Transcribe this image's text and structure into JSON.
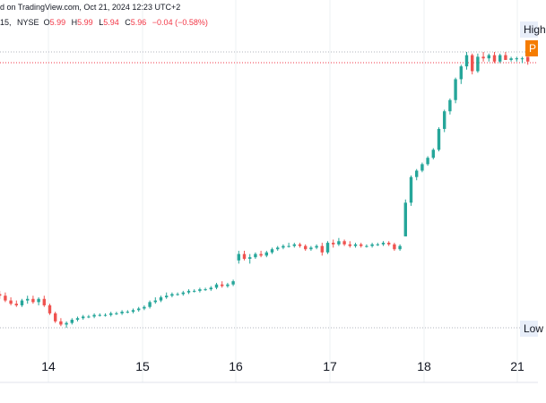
{
  "header": {
    "source_text": "d on TradingView.com, Oct 21, 2024 12:23 UTC+2",
    "interval": "15",
    "exchange": "NYSE",
    "open_label": "O",
    "open_value": "5.99",
    "high_label": "H",
    "high_value": "5.99",
    "low_label": "L",
    "low_value": "5.94",
    "close_label": "C",
    "close_value": "5.96",
    "change": "−0.04 (−0.58%)"
  },
  "badges": {
    "high": "High",
    "price": "P",
    "low": "Low"
  },
  "colors": {
    "up": "#26a69a",
    "down": "#ef5350",
    "grid": "#eef0f3",
    "price_line": "#f23645",
    "ref_line": "#b2b5be"
  },
  "chart_data": {
    "type": "candlestick",
    "x_tick_labels": [
      "14",
      "15",
      "16",
      "17",
      "18",
      "21"
    ],
    "high_line": 6.02,
    "low_line": 4.3,
    "last_price": 5.96,
    "ylim": [
      4.1,
      6.2
    ],
    "candles": [
      [
        0,
        4.51,
        4.53,
        4.48,
        4.5
      ],
      [
        1,
        4.5,
        4.52,
        4.46,
        4.47
      ],
      [
        2,
        4.47,
        4.49,
        4.44,
        4.45
      ],
      [
        3,
        4.45,
        4.47,
        4.43,
        4.44
      ],
      [
        4,
        4.44,
        4.48,
        4.43,
        4.47
      ],
      [
        5,
        4.47,
        4.5,
        4.45,
        4.48
      ],
      [
        6,
        4.48,
        4.5,
        4.45,
        4.46
      ],
      [
        7,
        4.46,
        4.49,
        4.44,
        4.48
      ],
      [
        8,
        4.48,
        4.5,
        4.43,
        4.44
      ],
      [
        9,
        4.44,
        4.45,
        4.38,
        4.39
      ],
      [
        10,
        4.39,
        4.4,
        4.33,
        4.34
      ],
      [
        11,
        4.34,
        4.36,
        4.31,
        4.32
      ],
      [
        12,
        4.32,
        4.34,
        4.3,
        4.33
      ],
      [
        13,
        4.33,
        4.36,
        4.32,
        4.35
      ],
      [
        14,
        4.35,
        4.37,
        4.34,
        4.36
      ],
      [
        15,
        4.36,
        4.38,
        4.35,
        4.37
      ],
      [
        16,
        4.37,
        4.38,
        4.36,
        4.37
      ],
      [
        17,
        4.37,
        4.39,
        4.36,
        4.38
      ],
      [
        18,
        4.38,
        4.39,
        4.37,
        4.38
      ],
      [
        19,
        4.38,
        4.39,
        4.37,
        4.38
      ],
      [
        20,
        4.38,
        4.4,
        4.37,
        4.39
      ],
      [
        21,
        4.39,
        4.4,
        4.38,
        4.39
      ],
      [
        22,
        4.39,
        4.41,
        4.38,
        4.4
      ],
      [
        23,
        4.4,
        4.41,
        4.39,
        4.4
      ],
      [
        24,
        4.4,
        4.42,
        4.39,
        4.41
      ],
      [
        25,
        4.41,
        4.43,
        4.4,
        4.42
      ],
      [
        26,
        4.42,
        4.44,
        4.41,
        4.43
      ],
      [
        27,
        4.43,
        4.47,
        4.42,
        4.46
      ],
      [
        28,
        4.46,
        4.49,
        4.45,
        4.47
      ],
      [
        29,
        4.47,
        4.5,
        4.46,
        4.49
      ],
      [
        30,
        4.49,
        4.52,
        4.48,
        4.5
      ],
      [
        31,
        4.5,
        4.52,
        4.49,
        4.51
      ],
      [
        32,
        4.51,
        4.52,
        4.5,
        4.51
      ],
      [
        33,
        4.51,
        4.53,
        4.5,
        4.52
      ],
      [
        34,
        4.52,
        4.54,
        4.51,
        4.53
      ],
      [
        35,
        4.53,
        4.54,
        4.52,
        4.53
      ],
      [
        36,
        4.53,
        4.55,
        4.52,
        4.54
      ],
      [
        37,
        4.54,
        4.55,
        4.53,
        4.54
      ],
      [
        38,
        4.54,
        4.56,
        4.53,
        4.55
      ],
      [
        39,
        4.55,
        4.58,
        4.54,
        4.57
      ],
      [
        40,
        4.57,
        4.59,
        4.55,
        4.56
      ],
      [
        41,
        4.56,
        4.58,
        4.55,
        4.57
      ],
      [
        42,
        4.57,
        4.6,
        4.56,
        4.59
      ],
      [
        43,
        4.72,
        4.78,
        4.7,
        4.76
      ],
      [
        44,
        4.76,
        4.78,
        4.72,
        4.73
      ],
      [
        45,
        4.73,
        4.76,
        4.7,
        4.74
      ],
      [
        46,
        4.74,
        4.77,
        4.73,
        4.76
      ],
      [
        47,
        4.76,
        4.78,
        4.74,
        4.75
      ],
      [
        48,
        4.75,
        4.78,
        4.74,
        4.77
      ],
      [
        49,
        4.77,
        4.8,
        4.76,
        4.79
      ],
      [
        50,
        4.79,
        4.81,
        4.78,
        4.8
      ],
      [
        51,
        4.8,
        4.82,
        4.79,
        4.81
      ],
      [
        52,
        4.81,
        4.83,
        4.8,
        4.81
      ],
      [
        53,
        4.81,
        4.83,
        4.8,
        4.82
      ],
      [
        54,
        4.82,
        4.83,
        4.8,
        4.81
      ],
      [
        55,
        4.81,
        4.82,
        4.78,
        4.79
      ],
      [
        56,
        4.79,
        4.81,
        4.78,
        4.8
      ],
      [
        57,
        4.8,
        4.82,
        4.79,
        4.81
      ],
      [
        58,
        4.81,
        4.83,
        4.75,
        4.77
      ],
      [
        59,
        4.77,
        4.84,
        4.76,
        4.83
      ],
      [
        60,
        4.83,
        4.85,
        4.8,
        4.82
      ],
      [
        61,
        4.82,
        4.86,
        4.81,
        4.84
      ],
      [
        62,
        4.84,
        4.85,
        4.81,
        4.82
      ],
      [
        63,
        4.82,
        4.84,
        4.8,
        4.81
      ],
      [
        64,
        4.81,
        4.83,
        4.8,
        4.82
      ],
      [
        65,
        4.82,
        4.83,
        4.8,
        4.81
      ],
      [
        66,
        4.81,
        4.82,
        4.8,
        4.81
      ],
      [
        67,
        4.81,
        4.83,
        4.8,
        4.82
      ],
      [
        68,
        4.82,
        4.83,
        4.81,
        4.82
      ],
      [
        69,
        4.82,
        4.84,
        4.81,
        4.83
      ],
      [
        70,
        4.83,
        4.84,
        4.81,
        4.82
      ],
      [
        71,
        4.82,
        4.83,
        4.78,
        4.79
      ],
      [
        72,
        4.79,
        4.82,
        4.78,
        4.81
      ],
      [
        73,
        4.87,
        5.1,
        4.87,
        5.08
      ],
      [
        74,
        5.08,
        5.25,
        5.06,
        5.24
      ],
      [
        75,
        5.24,
        5.29,
        5.22,
        5.28
      ],
      [
        76,
        5.28,
        5.33,
        5.27,
        5.32
      ],
      [
        77,
        5.32,
        5.37,
        5.31,
        5.36
      ],
      [
        78,
        5.36,
        5.42,
        5.35,
        5.41
      ],
      [
        79,
        5.41,
        5.55,
        5.4,
        5.54
      ],
      [
        80,
        5.54,
        5.66,
        5.52,
        5.65
      ],
      [
        81,
        5.65,
        5.73,
        5.63,
        5.72
      ],
      [
        82,
        5.72,
        5.86,
        5.7,
        5.85
      ],
      [
        83,
        5.85,
        5.94,
        5.82,
        5.93
      ],
      [
        84,
        5.93,
        6.02,
        5.91,
        6.0
      ],
      [
        85,
        6.0,
        6.01,
        5.88,
        5.9
      ],
      [
        86,
        5.9,
        6.01,
        5.89,
        5.99
      ],
      [
        87,
        5.99,
        6.02,
        5.96,
        5.98
      ],
      [
        88,
        5.98,
        6.01,
        5.96,
        6.0
      ],
      [
        89,
        6.0,
        6.02,
        5.95,
        5.96
      ],
      [
        90,
        5.96,
        6.01,
        5.95,
        6.0
      ],
      [
        91,
        6.0,
        6.02,
        5.97,
        5.97
      ],
      [
        92,
        5.97,
        5.99,
        5.96,
        5.98
      ],
      [
        93,
        5.98,
        5.99,
        5.96,
        5.98
      ],
      [
        94,
        5.98,
        5.99,
        5.95,
        5.98
      ],
      [
        95,
        5.99,
        5.99,
        5.94,
        5.96
      ]
    ]
  }
}
